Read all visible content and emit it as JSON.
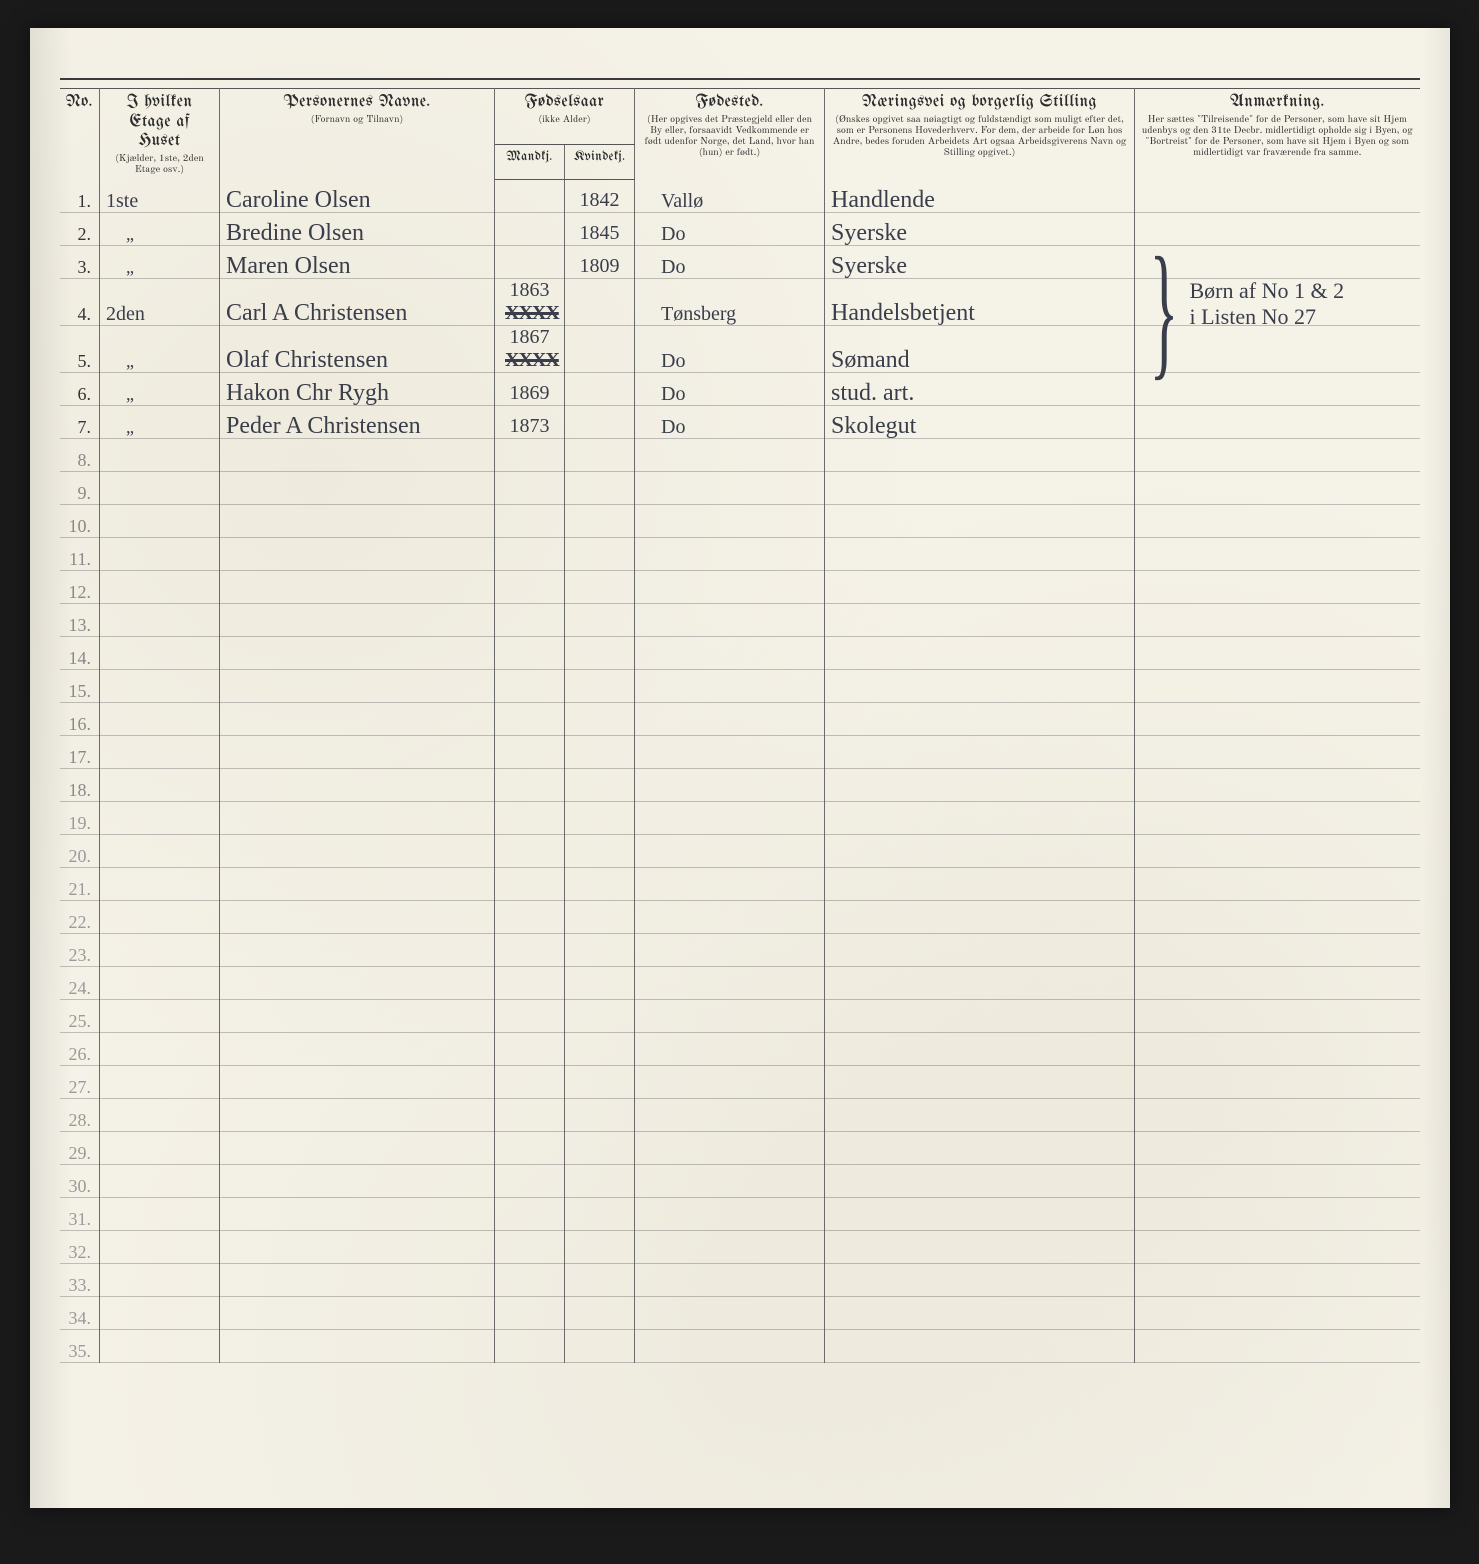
{
  "page": {
    "background": "#f5f2e8",
    "ink_color": "#3a3e4a",
    "rule_color": "#6b6b6b"
  },
  "headers": {
    "no": "No.",
    "floor": "I hvilken Etage\naf Huset",
    "floor_sub": "(Kjælder, 1ste, 2den\nEtage osv.)",
    "name": "Personernes Navne.",
    "name_sub": "(Fornavn og Tilnavn)",
    "birthyear": "Fødselsaar",
    "birthyear_sub": "(ikke Alder)",
    "male": "Mandkj.",
    "female": "Kvindekj.",
    "birthplace": "Fødested.",
    "birthplace_sub": "(Her opgives det Præstegjeld eller den By eller, forsaavidt Vedkommende er født udenfor Norge, det Land, hvor han (hun) er født.)",
    "occupation": "Næringsvei og borgerlig Stilling",
    "occupation_sub": "(Ønskes opgivet saa nøiagtigt og fuldstændigt som muligt efter det, som er Personens Hovederhverv. For dem, der arbeide for Løn hos Andre, bedes foruden Arbeidets Art ogsaa Arbeidsgiverens Navn og Stilling opgivet.)",
    "remarks": "Anmærkning.",
    "remarks_sub": "Her sættes \"Tilreisende\" for de Personer, som have sit Hjem udenbys og den 31te Decbr. midlertidigt opholde sig i Byen, og \"Bortreist\" for de Personer, som have sit Hjem i Byen og som midlertidigt var fraværende fra samme."
  },
  "rows": [
    {
      "n": "1.",
      "floor": "1ste",
      "name": "Caroline Olsen",
      "ym": "",
      "yf": "1842",
      "bp": "Vallø",
      "occ": "Handlende",
      "rem": ""
    },
    {
      "n": "2.",
      "floor": "\"",
      "name": "Bredine Olsen",
      "ym": "",
      "yf": "1845",
      "bp": "Do",
      "occ": "Syerske",
      "rem": ""
    },
    {
      "n": "3.",
      "floor": "\"",
      "name": "Maren Olsen",
      "ym": "",
      "yf": "1809",
      "bp": "Do",
      "occ": "Syerske",
      "rem": ""
    },
    {
      "n": "4.",
      "floor": "2den",
      "name": "Carl A Christensen",
      "ym": "1863",
      "ym_strike": "XXXX",
      "yf": "",
      "bp": "Tønsberg",
      "occ": "Handelsbetjent",
      "rem": ""
    },
    {
      "n": "5.",
      "floor": "\"",
      "name": "Olaf Christensen",
      "ym": "1867",
      "ym_strike": "XXXX",
      "yf": "",
      "bp": "Do",
      "occ": "Sømand",
      "rem": ""
    },
    {
      "n": "6.",
      "floor": "\"",
      "name": "Hakon Chr Rygh",
      "ym": "1869",
      "yf": "",
      "bp": "Do",
      "occ": "stud. art.",
      "rem": ""
    },
    {
      "n": "7.",
      "floor": "\"",
      "name": "Peder A Christensen",
      "ym": "1873",
      "yf": "",
      "bp": "Do",
      "occ": "Skolegut",
      "rem": ""
    }
  ],
  "brace_note": {
    "line1": "Børn af No 1 & 2",
    "line2": "i Listen No 27"
  },
  "total_rows": 35
}
